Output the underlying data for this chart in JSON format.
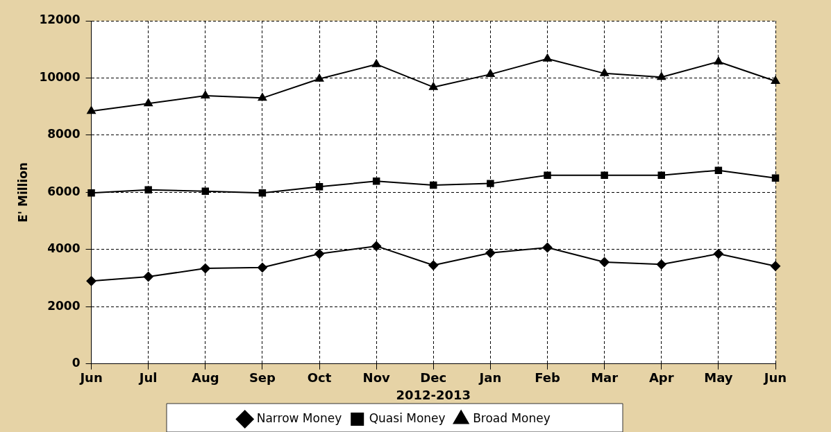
{
  "chart_data": {
    "type": "line",
    "xlabel": "2012-2013",
    "ylabel": "E' Million",
    "categories": [
      "Jun",
      "Jul",
      "Aug",
      "Sep",
      "Oct",
      "Nov",
      "Dec",
      "Jan",
      "Feb",
      "Mar",
      "Apr",
      "May",
      "Jun"
    ],
    "series": [
      {
        "name": "Narrow Money",
        "color": "#000000",
        "marker": "diamond",
        "values": [
          2900,
          3050,
          3340,
          3370,
          3850,
          4120,
          3450,
          3880,
          4070,
          3560,
          3480,
          3850,
          3420
        ]
      },
      {
        "name": "Quasi Money",
        "color": "#000000",
        "marker": "square",
        "values": [
          5980,
          6090,
          6040,
          5980,
          6200,
          6390,
          6250,
          6310,
          6600,
          6600,
          6600,
          6770,
          6500
        ]
      },
      {
        "name": "Broad Money",
        "color": "#000000",
        "marker": "triangle",
        "values": [
          8840,
          9110,
          9380,
          9300,
          9970,
          10480,
          9680,
          10130,
          10670,
          10160,
          10030,
          10570,
          9890
        ]
      }
    ],
    "ylim": [
      0,
      12000
    ],
    "yticks": [
      0,
      2000,
      4000,
      6000,
      8000,
      10000,
      12000
    ],
    "grid": true,
    "legend": "bottom",
    "line_style": "solid"
  }
}
